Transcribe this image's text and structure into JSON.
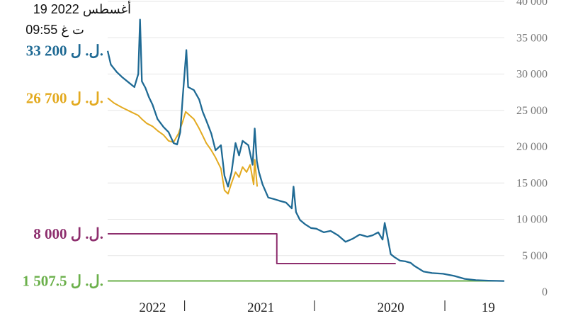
{
  "timestamp": {
    "date": "19 أغسطس 2022",
    "time": "09:55 ت غ"
  },
  "chart_data": {
    "type": "line",
    "title": "",
    "xlabel": "",
    "ylabel": "",
    "y_axis_position": "right",
    "ylim": [
      0,
      40000
    ],
    "yticks": [
      0,
      5000,
      10000,
      15000,
      20000,
      25000,
      30000,
      35000,
      40000
    ],
    "ytick_labels": [
      "0",
      "5 000",
      "10 000",
      "15 000",
      "20 000",
      "25 000",
      "30 000",
      "35 000",
      "40 000"
    ],
    "x_direction": "right-to-left",
    "x_range": [
      "2019-08",
      "2022-08-19"
    ],
    "x_labels": [
      {
        "label": "19",
        "x": "2019-09"
      },
      {
        "label": "2020",
        "x": "2020-06"
      },
      {
        "label": "2021",
        "x": "2021-06"
      },
      {
        "label": "2022",
        "x": "2022-04"
      }
    ],
    "x_separators": [
      "2020-01",
      "2021-01",
      "2022-01"
    ],
    "grid": true,
    "colors": {
      "market": "#1f6a94",
      "sayrafa": "#e3aa20",
      "customs": "#8e2f6e",
      "official": "#6bb04b"
    },
    "series": [
      {
        "key": "market",
        "color": "#1f6a94",
        "end_label": "33 200 ل. ل.",
        "points": [
          [
            "2019-08-01",
            1507
          ],
          [
            "2019-09-15",
            1550
          ],
          [
            "2019-10-20",
            1620
          ],
          [
            "2019-11-20",
            1800
          ],
          [
            "2019-12-20",
            2200
          ],
          [
            "2020-01-20",
            2500
          ],
          [
            "2020-02-20",
            2600
          ],
          [
            "2020-03-15",
            2800
          ],
          [
            "2020-04-10",
            3600
          ],
          [
            "2020-04-20",
            4000
          ],
          [
            "2020-05-05",
            4200
          ],
          [
            "2020-05-20",
            4300
          ],
          [
            "2020-06-05",
            4800
          ],
          [
            "2020-06-15",
            5200
          ],
          [
            "2020-06-25",
            7800
          ],
          [
            "2020-07-02",
            9500
          ],
          [
            "2020-07-08",
            7200
          ],
          [
            "2020-07-20",
            8200
          ],
          [
            "2020-08-05",
            7800
          ],
          [
            "2020-08-20",
            7600
          ],
          [
            "2020-09-10",
            7900
          ],
          [
            "2020-10-01",
            7300
          ],
          [
            "2020-10-20",
            6900
          ],
          [
            "2020-11-10",
            7800
          ],
          [
            "2020-12-01",
            8400
          ],
          [
            "2020-12-20",
            8200
          ],
          [
            "2021-01-10",
            8700
          ],
          [
            "2021-01-25",
            8800
          ],
          [
            "2021-02-10",
            9300
          ],
          [
            "2021-02-25",
            9900
          ],
          [
            "2021-03-08",
            11000
          ],
          [
            "2021-03-15",
            14500
          ],
          [
            "2021-03-20",
            11500
          ],
          [
            "2021-04-05",
            12300
          ],
          [
            "2021-04-20",
            12500
          ],
          [
            "2021-05-10",
            12800
          ],
          [
            "2021-05-25",
            13000
          ],
          [
            "2021-06-10",
            14800
          ],
          [
            "2021-06-20",
            16500
          ],
          [
            "2021-06-26",
            18000
          ],
          [
            "2021-07-02",
            22500
          ],
          [
            "2021-07-08",
            17500
          ],
          [
            "2021-07-20",
            20200
          ],
          [
            "2021-08-05",
            20800
          ],
          [
            "2021-08-15",
            18800
          ],
          [
            "2021-08-25",
            20500
          ],
          [
            "2021-09-05",
            16500
          ],
          [
            "2021-09-15",
            14500
          ],
          [
            "2021-09-25",
            16000
          ],
          [
            "2021-10-05",
            20200
          ],
          [
            "2021-10-20",
            19500
          ],
          [
            "2021-11-01",
            21800
          ],
          [
            "2021-11-15",
            23600
          ],
          [
            "2021-11-25",
            24800
          ],
          [
            "2021-12-05",
            26500
          ],
          [
            "2021-12-20",
            27800
          ],
          [
            "2022-01-05",
            28200
          ],
          [
            "2022-01-10",
            33300
          ],
          [
            "2022-01-20",
            27000
          ],
          [
            "2022-01-27",
            22000
          ],
          [
            "2022-02-05",
            20300
          ],
          [
            "2022-02-15",
            20500
          ],
          [
            "2022-03-01",
            22000
          ],
          [
            "2022-03-15",
            22700
          ],
          [
            "2022-04-01",
            23800
          ],
          [
            "2022-04-15",
            25800
          ],
          [
            "2022-04-25",
            26800
          ],
          [
            "2022-05-05",
            28100
          ],
          [
            "2022-05-15",
            29000
          ],
          [
            "2022-05-20",
            37500
          ],
          [
            "2022-05-25",
            30000
          ],
          [
            "2022-06-05",
            28200
          ],
          [
            "2022-06-20",
            28800
          ],
          [
            "2022-07-10",
            29600
          ],
          [
            "2022-07-25",
            30300
          ],
          [
            "2022-08-10",
            31300
          ],
          [
            "2022-08-19",
            33200
          ]
        ]
      },
      {
        "key": "sayrafa",
        "color": "#e3aa20",
        "end_label": "26 700 ل. ل.",
        "points": [
          [
            "2021-06-25",
            14500
          ],
          [
            "2021-07-02",
            18200
          ],
          [
            "2021-07-05",
            14800
          ],
          [
            "2021-07-15",
            17500
          ],
          [
            "2021-07-25",
            16500
          ],
          [
            "2021-08-05",
            17200
          ],
          [
            "2021-08-15",
            15800
          ],
          [
            "2021-08-25",
            16500
          ],
          [
            "2021-09-05",
            15000
          ],
          [
            "2021-09-15",
            13500
          ],
          [
            "2021-09-25",
            14000
          ],
          [
            "2021-10-05",
            17000
          ],
          [
            "2021-10-20",
            18500
          ],
          [
            "2021-11-01",
            19500
          ],
          [
            "2021-11-15",
            20500
          ],
          [
            "2021-11-25",
            21500
          ],
          [
            "2021-12-05",
            22500
          ],
          [
            "2021-12-20",
            23800
          ],
          [
            "2022-01-05",
            24500
          ],
          [
            "2022-01-12",
            24800
          ],
          [
            "2022-01-20",
            23500
          ],
          [
            "2022-02-01",
            21800
          ],
          [
            "2022-02-15",
            20600
          ],
          [
            "2022-03-01",
            20800
          ],
          [
            "2022-03-15",
            21600
          ],
          [
            "2022-04-01",
            22200
          ],
          [
            "2022-04-15",
            22800
          ],
          [
            "2022-05-01",
            23200
          ],
          [
            "2022-05-15",
            23800
          ],
          [
            "2022-05-25",
            24300
          ],
          [
            "2022-06-15",
            24800
          ],
          [
            "2022-07-10",
            25400
          ],
          [
            "2022-08-01",
            26000
          ],
          [
            "2022-08-19",
            26700
          ]
        ]
      },
      {
        "key": "customs",
        "color": "#8e2f6e",
        "end_label": "8 000 ل. ل.",
        "points": [
          [
            "2020-06-01",
            3900
          ],
          [
            "2021-05-01",
            3900
          ],
          [
            "2021-05-01",
            8000
          ],
          [
            "2022-08-19",
            8000
          ]
        ]
      },
      {
        "key": "official",
        "color": "#6bb04b",
        "end_label": "1 507.5 ل. ل.",
        "points": [
          [
            "2019-08-01",
            1507.5
          ],
          [
            "2022-08-19",
            1507.5
          ]
        ]
      }
    ]
  }
}
